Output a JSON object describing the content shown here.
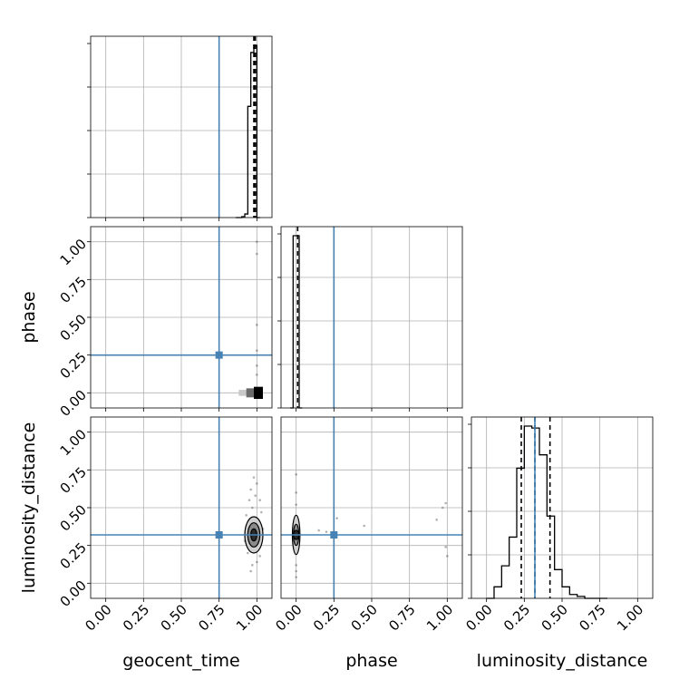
{
  "chart_data": {
    "type": "corner",
    "parameters": [
      "geocent_time",
      "phase",
      "luminosity_distance"
    ],
    "tick_labels": [
      "0.00",
      "0.25",
      "0.50",
      "0.75",
      "1.00"
    ],
    "axis_range": [
      -0.1,
      1.1
    ],
    "grid": true,
    "truths": {
      "geocent_time": 0.75,
      "phase": 0.25,
      "luminosity_distance": 0.32
    },
    "colors": {
      "truth": "#4682b4",
      "hist": "#000000",
      "grid": "#b0b0b0"
    },
    "histograms": {
      "geocent_time": {
        "bin_edges": [
          0.86,
          0.88,
          0.9,
          0.92,
          0.94,
          0.96,
          0.98,
          1.0,
          1.02
        ],
        "counts": [
          0,
          0,
          0.005,
          0.02,
          0.62,
          0.92,
          0.96,
          0
        ],
        "quantiles": [
          0.98,
          0.985,
          0.99
        ]
      },
      "phase": {
        "bin_edges": [
          -0.04,
          -0.02,
          0.0,
          0.02,
          0.04
        ],
        "counts": [
          0,
          1.0,
          1.0,
          0
        ],
        "quantiles": [
          0.01
        ]
      },
      "luminosity_distance": {
        "bin_edges": [
          0.0,
          0.05,
          0.1,
          0.15,
          0.2,
          0.25,
          0.3,
          0.35,
          0.4,
          0.45,
          0.5,
          0.55,
          0.6,
          0.65,
          0.7,
          0.75,
          0.8
        ],
        "counts": [
          0,
          0.06,
          0.17,
          0.32,
          0.68,
          0.9,
          0.89,
          0.75,
          0.43,
          0.15,
          0.06,
          0.02,
          0.01,
          0,
          0,
          0
        ],
        "quantiles": [
          0.23,
          0.32,
          0.42
        ]
      }
    },
    "scatter": [
      {
        "x": "geocent_time",
        "y": "phase",
        "points": [
          [
            0.9,
            0.01
          ],
          [
            0.93,
            0.0
          ],
          [
            0.96,
            0.01
          ],
          [
            0.99,
            0.0
          ],
          [
            1.0,
            0.02
          ],
          [
            1.0,
            1.0
          ],
          [
            1.0,
            0.92
          ],
          [
            1.0,
            0.45
          ],
          [
            1.0,
            0.28
          ],
          [
            1.0,
            0.18
          ],
          [
            1.0,
            0.12
          ]
        ],
        "density_blocks": [
          {
            "x0": 0.88,
            "x1": 0.93,
            "y0": -0.02,
            "y1": 0.02,
            "level": 0.15
          },
          {
            "x0": 0.93,
            "x1": 0.98,
            "y0": -0.03,
            "y1": 0.03,
            "level": 0.55
          },
          {
            "x0": 0.98,
            "x1": 1.04,
            "y0": -0.04,
            "y1": 0.04,
            "level": 1.0
          }
        ]
      },
      {
        "x": "geocent_time",
        "y": "luminosity_distance",
        "center": [
          0.98,
          0.32
        ],
        "contour_radii": [
          [
            0.06,
            0.12
          ],
          [
            0.04,
            0.08
          ],
          [
            0.02,
            0.04
          ]
        ],
        "points": [
          [
            0.98,
            0.7
          ],
          [
            0.96,
            0.62
          ],
          [
            1.0,
            0.66
          ],
          [
            0.95,
            0.55
          ],
          [
            0.99,
            0.58
          ],
          [
            1.02,
            0.55
          ],
          [
            0.97,
            0.5
          ],
          [
            0.93,
            0.45
          ],
          [
            1.03,
            0.47
          ],
          [
            0.94,
            0.2
          ],
          [
            1.0,
            0.14
          ],
          [
            0.97,
            0.12
          ],
          [
            0.96,
            0.08
          ],
          [
            1.02,
            0.18
          ],
          [
            0.92,
            0.28
          ],
          [
            1.04,
            0.36
          ]
        ]
      },
      {
        "x": "phase",
        "y": "luminosity_distance",
        "center": [
          0.0,
          0.32
        ],
        "contour_radii": [
          [
            0.025,
            0.13
          ],
          [
            0.015,
            0.07
          ],
          [
            0.008,
            0.03
          ]
        ],
        "points": [
          [
            0.0,
            0.72
          ],
          [
            0.0,
            0.6
          ],
          [
            0.0,
            0.52
          ],
          [
            0.0,
            0.08
          ],
          [
            0.0,
            0.12
          ],
          [
            0.0,
            0.04
          ],
          [
            0.15,
            0.35
          ],
          [
            0.2,
            0.34
          ],
          [
            0.27,
            0.43
          ],
          [
            0.45,
            0.38
          ],
          [
            0.93,
            0.42
          ],
          [
            0.97,
            0.5
          ],
          [
            0.99,
            0.53
          ],
          [
            1.0,
            0.18
          ],
          [
            0.99,
            0.24
          ]
        ]
      }
    ]
  }
}
